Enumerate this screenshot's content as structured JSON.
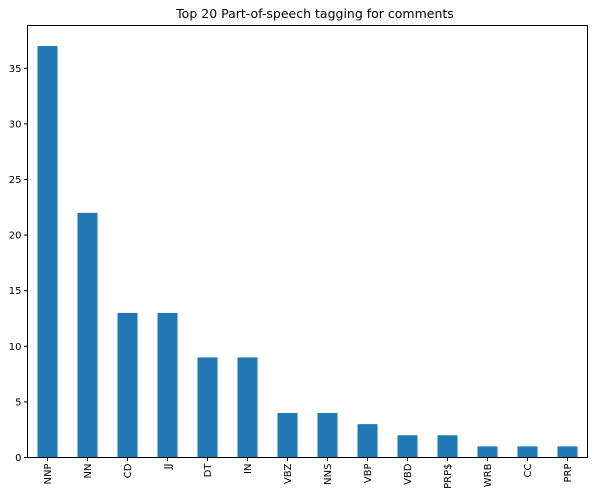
{
  "chart_data": {
    "type": "bar",
    "title": "Top 20 Part-of-speech tagging for comments",
    "xlabel": "",
    "ylabel": "",
    "categories": [
      "NNP",
      "NN",
      "CD",
      "JJ",
      "DT",
      "IN",
      "VBZ",
      "NNS",
      "VBP",
      "VBD",
      "PRP$",
      "WRB",
      "CC",
      "PRP"
    ],
    "values": [
      37,
      22,
      13,
      13,
      9,
      9,
      4,
      4,
      3,
      2,
      2,
      1,
      1,
      1
    ],
    "ylim": [
      0,
      38.85
    ],
    "yticks": [
      0,
      5,
      10,
      15,
      20,
      25,
      30,
      35
    ],
    "bar_color": "#1f77b4",
    "grid": false,
    "legend": "none"
  }
}
